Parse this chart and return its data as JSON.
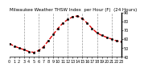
{
  "title": "Milwaukee Weather THSW Index  per Hour (F)  (24 Hours)",
  "hours": [
    0,
    1,
    2,
    3,
    4,
    5,
    6,
    7,
    8,
    9,
    10,
    11,
    12,
    13,
    14,
    15,
    16,
    17,
    18,
    19,
    20,
    21,
    22,
    23
  ],
  "values": [
    55,
    52,
    50,
    48,
    46,
    45,
    47,
    51,
    58,
    65,
    72,
    78,
    82,
    85,
    86,
    83,
    78,
    72,
    67,
    64,
    62,
    60,
    58,
    57
  ],
  "line_color": "#dd0000",
  "marker_color": "#000000",
  "bg_color": "#ffffff",
  "plot_bg_color": "#ffffff",
  "grid_color": "#999999",
  "title_color": "#000000",
  "ylim": [
    40,
    90
  ],
  "yticks": [
    40,
    50,
    60,
    70,
    80,
    90
  ],
  "xlim": [
    0,
    23
  ],
  "xticks": [
    0,
    1,
    2,
    3,
    4,
    5,
    6,
    7,
    8,
    9,
    10,
    11,
    12,
    13,
    14,
    15,
    16,
    17,
    18,
    19,
    20,
    21,
    22,
    23
  ],
  "vgrid_xticks": [
    3,
    6,
    9,
    12,
    15,
    18,
    21
  ],
  "title_fontsize": 4.0,
  "tick_fontsize": 3.5,
  "line_width": 1.0,
  "marker_size": 1.8,
  "linestyle": "--"
}
